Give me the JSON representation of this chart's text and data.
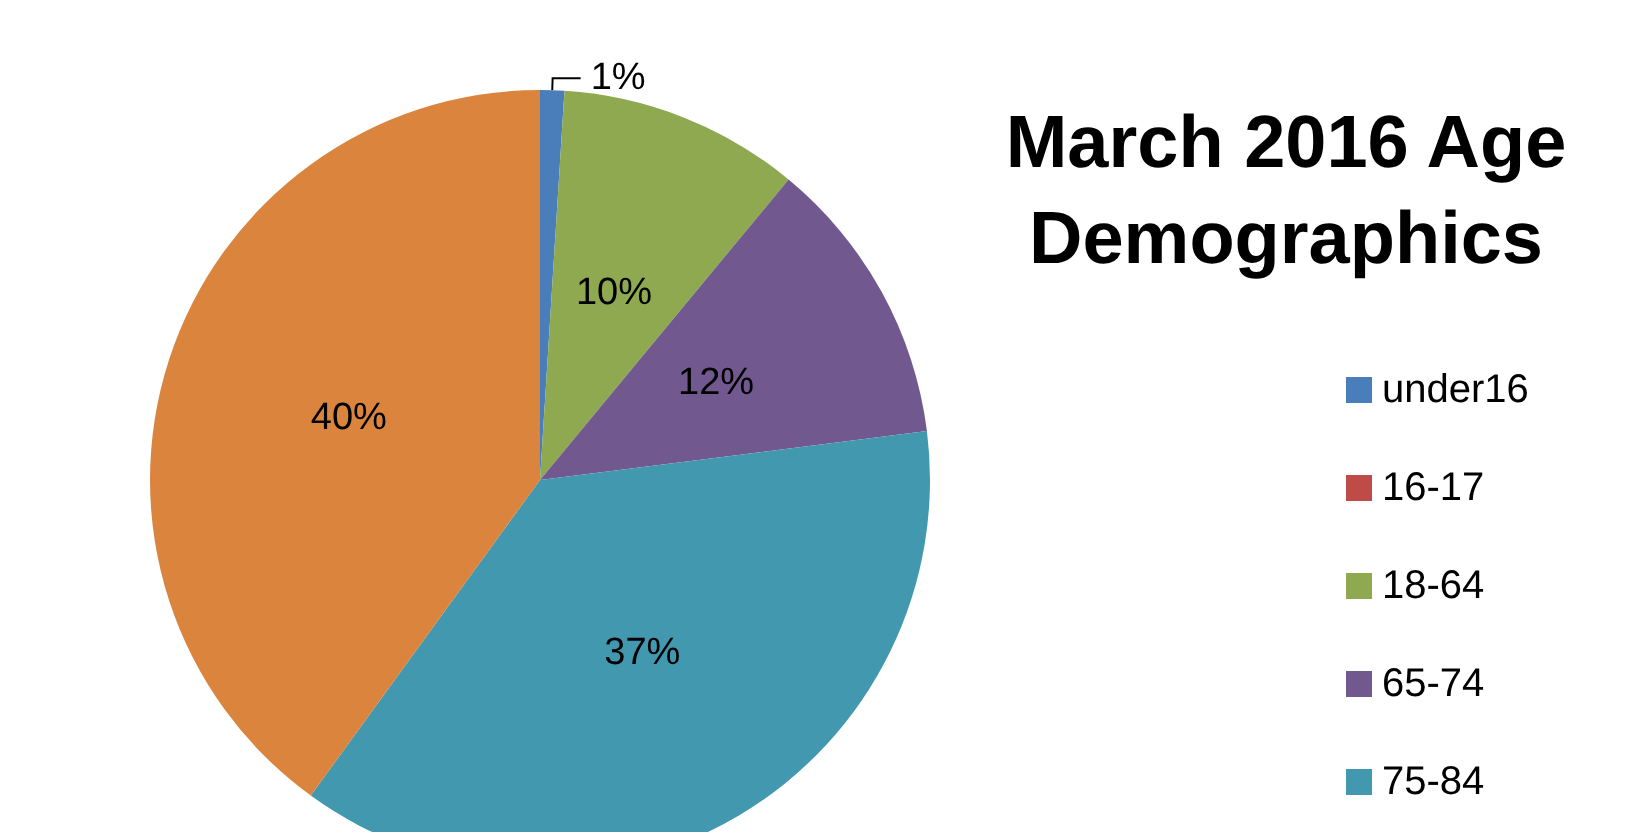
{
  "chart_data": {
    "type": "pie",
    "title": "March 2016 Age\nDemographics",
    "categories": [
      "under16",
      "16-17",
      "18-64",
      "65-74",
      "75-84",
      null
    ],
    "values": [
      1,
      0,
      10,
      12,
      37,
      40
    ],
    "value_labels": [
      "1%",
      null,
      "10%",
      "12%",
      "37%",
      "40%"
    ],
    "colors": [
      "#4a7ebb",
      "#be4b48",
      "#8ea94f",
      "#71588f",
      "#4198af",
      "#db843d"
    ],
    "legend": "right"
  }
}
